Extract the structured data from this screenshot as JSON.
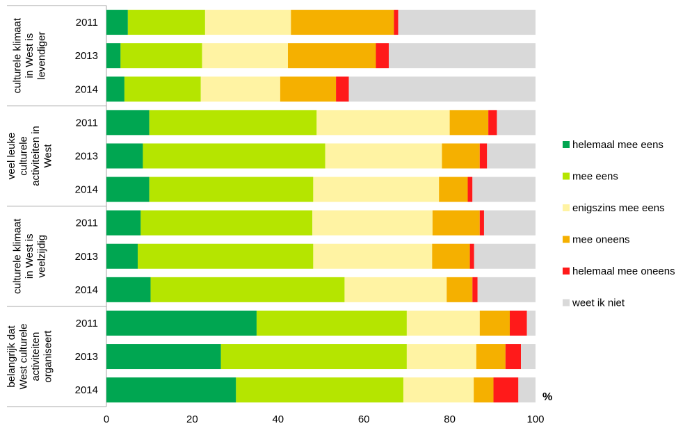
{
  "chart_data": {
    "type": "bar",
    "orientation": "horizontal",
    "stacked": true,
    "xlim": [
      0,
      100
    ],
    "xticks": [
      "0",
      "20",
      "40",
      "60",
      "80",
      "100"
    ],
    "unit": "%",
    "legend_position": "right",
    "series": [
      {
        "name": "helemaal mee eens",
        "color": "#00a651"
      },
      {
        "name": "mee eens",
        "color": "#b5e500"
      },
      {
        "name": "enigszins mee eens",
        "color": "#fff3a3"
      },
      {
        "name": "mee oneens",
        "color": "#f5b000"
      },
      {
        "name": "helemaal mee oneens",
        "color": "#ff1a1a"
      },
      {
        "name": "weet ik niet",
        "color": "#d9d9d9"
      }
    ],
    "groups": [
      {
        "label": "culturele klimaat in West is levendiger",
        "label_lines": [
          "culturele klimaat",
          "in West is",
          "levendiger"
        ],
        "rows": [
          {
            "year": "2011",
            "values": [
              5,
              18,
              20,
              24,
              1,
              32
            ]
          },
          {
            "year": "2013",
            "values": [
              3.3,
              19,
              20,
              20.5,
              3,
              34.2
            ]
          },
          {
            "year": "2014",
            "values": [
              4.2,
              17.8,
              18.5,
              13,
              3,
              43.5
            ]
          }
        ]
      },
      {
        "label": "veel leuke culturele activiteiten in West",
        "label_lines": [
          "veel leuke",
          "culturele",
          "activiteiten in",
          "West"
        ],
        "rows": [
          {
            "year": "2011",
            "values": [
              10,
              39,
              31,
              9,
              2,
              9
            ]
          },
          {
            "year": "2013",
            "values": [
              8.5,
              42.5,
              27.2,
              8.8,
              1.7,
              11.3
            ]
          },
          {
            "year": "2014",
            "values": [
              10,
              38.2,
              29.3,
              6.7,
              1.1,
              14.7
            ]
          }
        ]
      },
      {
        "label": "culturele klimaat in West is veelzijdig",
        "label_lines": [
          "culturele klimaat",
          "in West is",
          "veelzijdig"
        ],
        "rows": [
          {
            "year": "2011",
            "values": [
              8,
              40,
              28,
              11,
              1,
              12
            ]
          },
          {
            "year": "2013",
            "values": [
              7.3,
              40.9,
              27.7,
              8.8,
              1,
              14.3
            ]
          },
          {
            "year": "2014",
            "values": [
              10.3,
              45.2,
              23.8,
              6,
              1.2,
              13.5
            ]
          }
        ]
      },
      {
        "label": "belangrijk dat West culturele activiteiten organiseert",
        "label_lines": [
          "belangrijk dat",
          "West culturele",
          "activiteiten",
          "organiseert"
        ],
        "rows": [
          {
            "year": "2011",
            "values": [
              35,
              35,
              17,
              7,
              4,
              2
            ]
          },
          {
            "year": "2013",
            "values": [
              26.7,
              43.3,
              16.2,
              6.8,
              3.6,
              3.4
            ]
          },
          {
            "year": "2014",
            "values": [
              30.2,
              39,
              16.4,
              4.6,
              5.8,
              4
            ]
          }
        ]
      }
    ]
  }
}
